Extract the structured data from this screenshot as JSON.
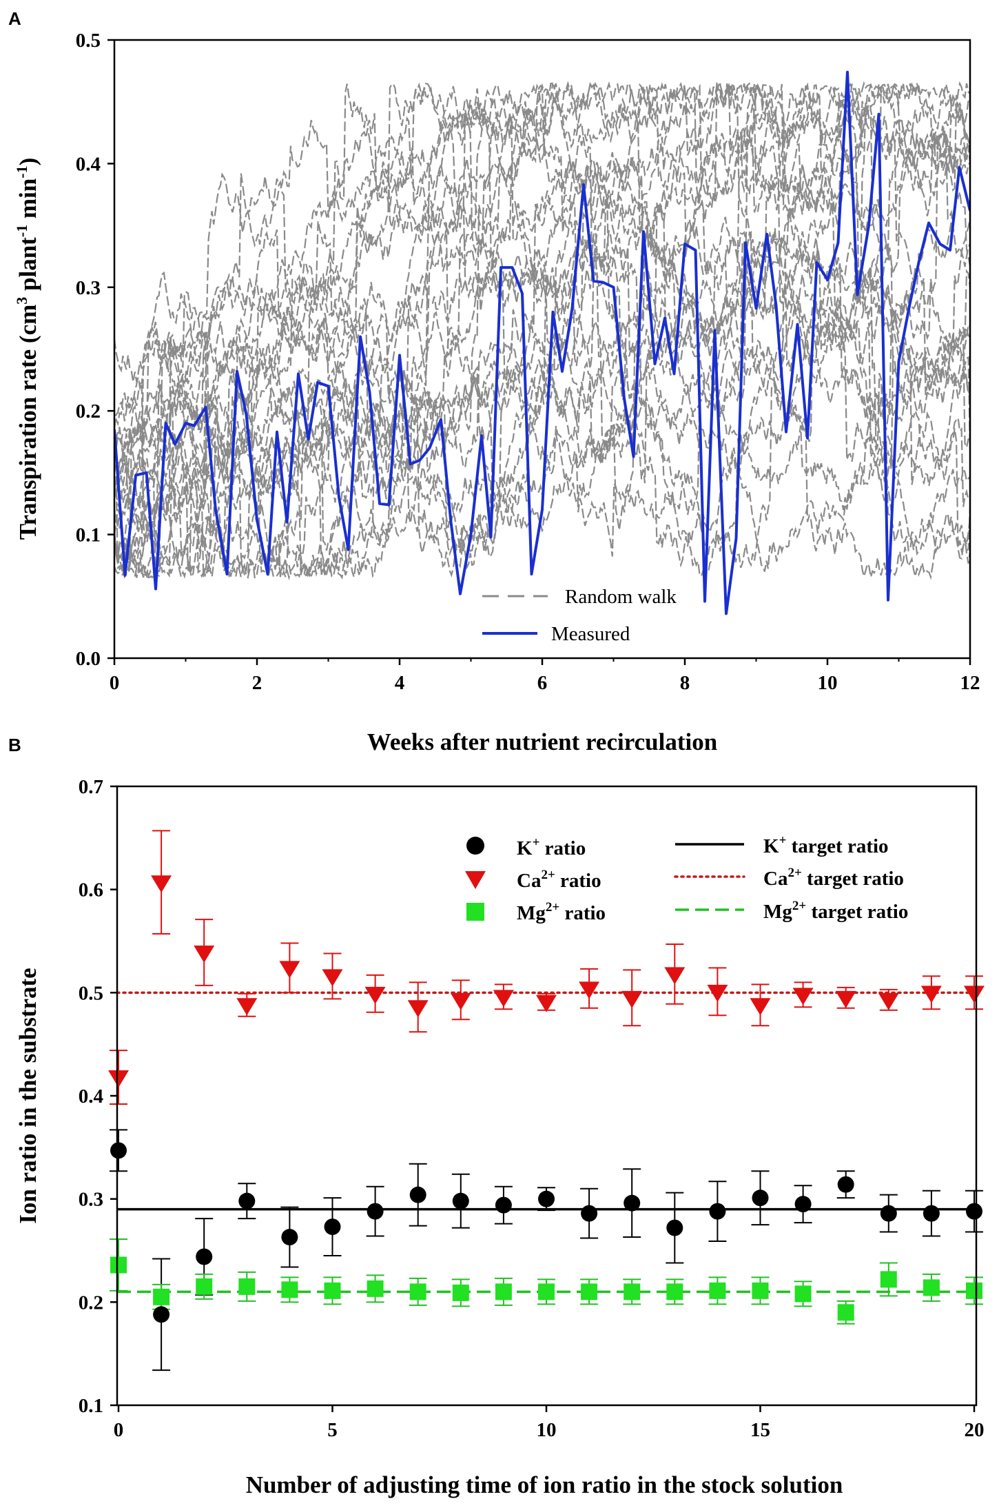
{
  "panels": [
    {
      "panel_label": "A",
      "xlabel": "Weeks after nutrient recirculation",
      "ylabel_parts": {
        "a": "Transpiration rate (cm",
        "b": "3",
        "c": " plant",
        "d": "-1",
        "e": " min",
        "f": "-1",
        "g": ")"
      },
      "x_ticks": [
        "0",
        "2",
        "4",
        "6",
        "8",
        "10",
        "12"
      ],
      "y_ticks": [
        "0.0",
        "0.1",
        "0.2",
        "0.3",
        "0.4",
        "0.5"
      ],
      "legend": {
        "random_walk": "Random walk",
        "measured": "Measured"
      },
      "colors": {
        "random_walk": "#8a8a8a",
        "measured": "#1a2fd0"
      }
    },
    {
      "panel_label": "B",
      "xlabel": "Number of adjusting time of ion ratio in the stock solution",
      "ylabel": "Ion ratio in the substrate",
      "x_ticks": [
        "0",
        "5",
        "10",
        "15",
        "20"
      ],
      "y_ticks": [
        "0.1",
        "0.2",
        "0.3",
        "0.4",
        "0.5",
        "0.6",
        "0.7"
      ],
      "legend": {
        "k": {
          "sym": "K",
          "sup": "+",
          "ratio": " ratio",
          "target": " target ratio"
        },
        "ca": {
          "sym": "Ca",
          "sup": "2+",
          "ratio": " ratio",
          "target": " target ratio"
        },
        "mg": {
          "sym": "Mg",
          "sup": "2+",
          "ratio": " ratio",
          "target": " target ratio"
        }
      },
      "colors": {
        "k": "#000000",
        "ca": "#e01010",
        "mg": "#22e022"
      }
    }
  ],
  "chart_data": [
    {
      "type": "line",
      "title": "",
      "xlabel": "Weeks after nutrient recirculation",
      "ylabel": "Transpiration rate (cm3 plant-1 min-1)",
      "xlim": [
        0,
        12
      ],
      "ylim": [
        0,
        0.5
      ],
      "random_walk_range": [
        0.065,
        0.465
      ],
      "series": [
        {
          "name": "Measured",
          "x": [
            0,
            0.15,
            0.3,
            0.45,
            0.58,
            0.72,
            0.85,
            1.0,
            1.12,
            1.28,
            1.42,
            1.58,
            1.72,
            1.85,
            2.0,
            2.15,
            2.28,
            2.42,
            2.58,
            2.72,
            2.85,
            3.0,
            3.15,
            3.28,
            3.45,
            3.58,
            3.72,
            3.85,
            4.0,
            4.15,
            4.28,
            4.42,
            4.58,
            4.72,
            4.85,
            5.0,
            5.15,
            5.28,
            5.42,
            5.58,
            5.72,
            5.85,
            6.0,
            6.15,
            6.28,
            6.42,
            6.58,
            6.72,
            6.85,
            7.0,
            7.15,
            7.28,
            7.42,
            7.58,
            7.72,
            7.85,
            8.0,
            8.15,
            8.28,
            8.42,
            8.58,
            8.72,
            8.85,
            9.0,
            9.15,
            9.28,
            9.42,
            9.58,
            9.72,
            9.85,
            10.0,
            10.15,
            10.28,
            10.42,
            10.58,
            10.72,
            10.85,
            11.0,
            11.15,
            11.28,
            11.42,
            11.58,
            11.72,
            11.85,
            12.0
          ],
          "y": [
            0.185,
            0.067,
            0.148,
            0.15,
            0.056,
            0.19,
            0.173,
            0.19,
            0.188,
            0.203,
            0.12,
            0.068,
            0.232,
            0.197,
            0.112,
            0.068,
            0.183,
            0.11,
            0.23,
            0.177,
            0.223,
            0.22,
            0.13,
            0.088,
            0.26,
            0.215,
            0.125,
            0.124,
            0.245,
            0.157,
            0.16,
            0.17,
            0.193,
            0.11,
            0.052,
            0.1,
            0.18,
            0.098,
            0.316,
            0.316,
            0.295,
            0.068,
            0.12,
            0.28,
            0.232,
            0.283,
            0.383,
            0.305,
            0.304,
            0.3,
            0.21,
            0.163,
            0.345,
            0.238,
            0.275,
            0.23,
            0.335,
            0.33,
            0.046,
            0.265,
            0.036,
            0.097,
            0.336,
            0.283,
            0.343,
            0.285,
            0.183,
            0.27,
            0.178,
            0.32,
            0.306,
            0.336,
            0.474,
            0.294,
            0.35,
            0.44,
            0.047,
            0.24,
            0.285,
            0.32,
            0.352,
            0.335,
            0.33,
            0.397,
            0.362
          ]
        }
      ]
    },
    {
      "type": "scatter",
      "title": "",
      "xlabel": "Number of adjusting time of ion ratio in the stock solution",
      "ylabel": "Ion ratio in the substrate",
      "xlim": [
        0,
        20
      ],
      "ylim": [
        0.1,
        0.7
      ],
      "x": [
        0,
        1,
        2,
        3,
        4,
        5,
        6,
        7,
        8,
        9,
        10,
        11,
        12,
        13,
        14,
        15,
        16,
        17,
        18,
        19,
        20
      ],
      "series": [
        {
          "name": "K+ ratio",
          "values": [
            0.347,
            0.188,
            0.244,
            0.298,
            0.263,
            0.273,
            0.288,
            0.304,
            0.298,
            0.294,
            0.3,
            0.286,
            0.296,
            0.272,
            0.288,
            0.301,
            0.295,
            0.314,
            0.286,
            0.286,
            0.288
          ],
          "errors": [
            0.02,
            0.054,
            0.037,
            0.017,
            0.029,
            0.028,
            0.024,
            0.03,
            0.026,
            0.018,
            0.011,
            0.024,
            0.033,
            0.034,
            0.029,
            0.026,
            0.018,
            0.013,
            0.018,
            0.022,
            0.02
          ]
        },
        {
          "name": "Ca2+ ratio",
          "values": [
            0.418,
            0.607,
            0.539,
            0.488,
            0.524,
            0.516,
            0.499,
            0.486,
            0.493,
            0.496,
            0.491,
            0.504,
            0.495,
            0.518,
            0.501,
            0.488,
            0.498,
            0.495,
            0.493,
            0.5,
            0.5
          ],
          "errors": [
            0.026,
            0.05,
            0.032,
            0.011,
            0.024,
            0.022,
            0.018,
            0.024,
            0.019,
            0.012,
            0.008,
            0.019,
            0.027,
            0.029,
            0.023,
            0.02,
            0.012,
            0.01,
            0.01,
            0.016,
            0.016
          ]
        },
        {
          "name": "Mg2+ ratio",
          "values": [
            0.236,
            0.205,
            0.215,
            0.215,
            0.212,
            0.211,
            0.213,
            0.21,
            0.209,
            0.21,
            0.21,
            0.21,
            0.21,
            0.21,
            0.211,
            0.211,
            0.208,
            0.19,
            0.222,
            0.214,
            0.211
          ],
          "errors": [
            0.025,
            0.012,
            0.012,
            0.014,
            0.012,
            0.013,
            0.013,
            0.013,
            0.013,
            0.013,
            0.012,
            0.012,
            0.012,
            0.012,
            0.013,
            0.013,
            0.012,
            0.011,
            0.016,
            0.013,
            0.013
          ]
        },
        {
          "name": "K+ target ratio",
          "type": "hline",
          "value": 0.29
        },
        {
          "name": "Ca2+ target ratio",
          "type": "hline",
          "value": 0.5
        },
        {
          "name": "Mg2+ target ratio",
          "type": "hline",
          "value": 0.21
        }
      ]
    }
  ]
}
